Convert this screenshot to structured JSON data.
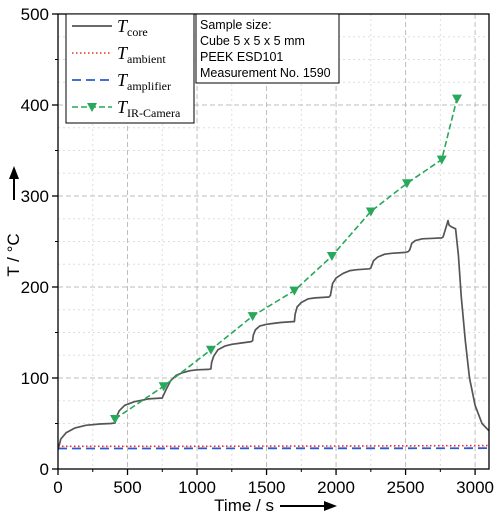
{
  "chart_data": {
    "type": "line",
    "xlabel": "Time / s",
    "ylabel": "T / °C",
    "xlim": [
      0,
      3100
    ],
    "ylim": [
      0,
      500
    ],
    "x_ticks": [
      0,
      500,
      1000,
      1500,
      2000,
      2500,
      3000
    ],
    "y_ticks": [
      0,
      100,
      200,
      300,
      400,
      500
    ],
    "grid": "dashed, minor",
    "legend_position": "top-left",
    "colors": {
      "core": "#555555",
      "ambient": "#e8302a",
      "amplifier": "#2a5bd7",
      "ir": "#27a85a"
    },
    "info_box": [
      "Sample size:",
      "Cube 5 x 5 x 5 mm",
      "PEEK ESD101",
      "Measurement No. 1590"
    ],
    "series": [
      {
        "name": "T",
        "subscript": "core",
        "key": "core",
        "style": "solid",
        "x": [
          0,
          20,
          60,
          120,
          200,
          300,
          380,
          410,
          420,
          440,
          480,
          550,
          650,
          750,
          755,
          780,
          810,
          850,
          900,
          950,
          1000,
          1080,
          1100,
          1105,
          1120,
          1150,
          1200,
          1250,
          1300,
          1390,
          1400,
          1405,
          1420,
          1450,
          1500,
          1550,
          1600,
          1690,
          1700,
          1705,
          1720,
          1750,
          1800,
          1850,
          1950,
          1960,
          1975,
          2000,
          2050,
          2100,
          2150,
          2240,
          2250,
          2255,
          2270,
          2300,
          2350,
          2400,
          2500,
          2520,
          2530,
          2545,
          2570,
          2620,
          2700,
          2760,
          2770,
          2790,
          2805,
          2812,
          2830,
          2860,
          2880,
          2900,
          2930,
          2960,
          3000,
          3050,
          3100
        ],
        "y": [
          21,
          33,
          40,
          45,
          48,
          49.5,
          50,
          50.5,
          57,
          64,
          70,
          74,
          77,
          78,
          80,
          88,
          97,
          103,
          106,
          108,
          109,
          109.5,
          110,
          117,
          124,
          131,
          135,
          137,
          138,
          140,
          141,
          147,
          153,
          157,
          159,
          160,
          161,
          162,
          162,
          170,
          178,
          183,
          187,
          188,
          189,
          191,
          204,
          210,
          215,
          218,
          219,
          220,
          221,
          223,
          229,
          233,
          236,
          237,
          238,
          239,
          241,
          248,
          251,
          253,
          253.5,
          254,
          255,
          265,
          273,
          268,
          266,
          264,
          235,
          190,
          140,
          100,
          70,
          50,
          42
        ]
      },
      {
        "name": "T",
        "subscript": "ambient",
        "key": "ambient",
        "style": "dotted",
        "x": [
          0,
          500,
          1000,
          1500,
          2000,
          2500,
          3000,
          3100
        ],
        "y": [
          25,
          25,
          25,
          25.2,
          25.3,
          25.5,
          25.7,
          25.8
        ]
      },
      {
        "name": "T",
        "subscript": "amplifier",
        "key": "amplifier",
        "style": "dashed",
        "x": [
          0,
          500,
          1000,
          1500,
          2000,
          2500,
          3000,
          3100
        ],
        "y": [
          22.5,
          22.5,
          22.6,
          22.7,
          22.7,
          22.8,
          22.9,
          23
        ]
      },
      {
        "name": "T",
        "subscript": "IR-Camera",
        "key": "ir",
        "style": "dashed-markers",
        "x": [
          410,
          760,
          1100,
          1400,
          1700,
          1970,
          2250,
          2510,
          2760,
          2870
        ],
        "y": [
          55,
          91,
          131,
          168,
          196,
          234,
          283,
          314,
          340,
          407
        ]
      }
    ]
  }
}
